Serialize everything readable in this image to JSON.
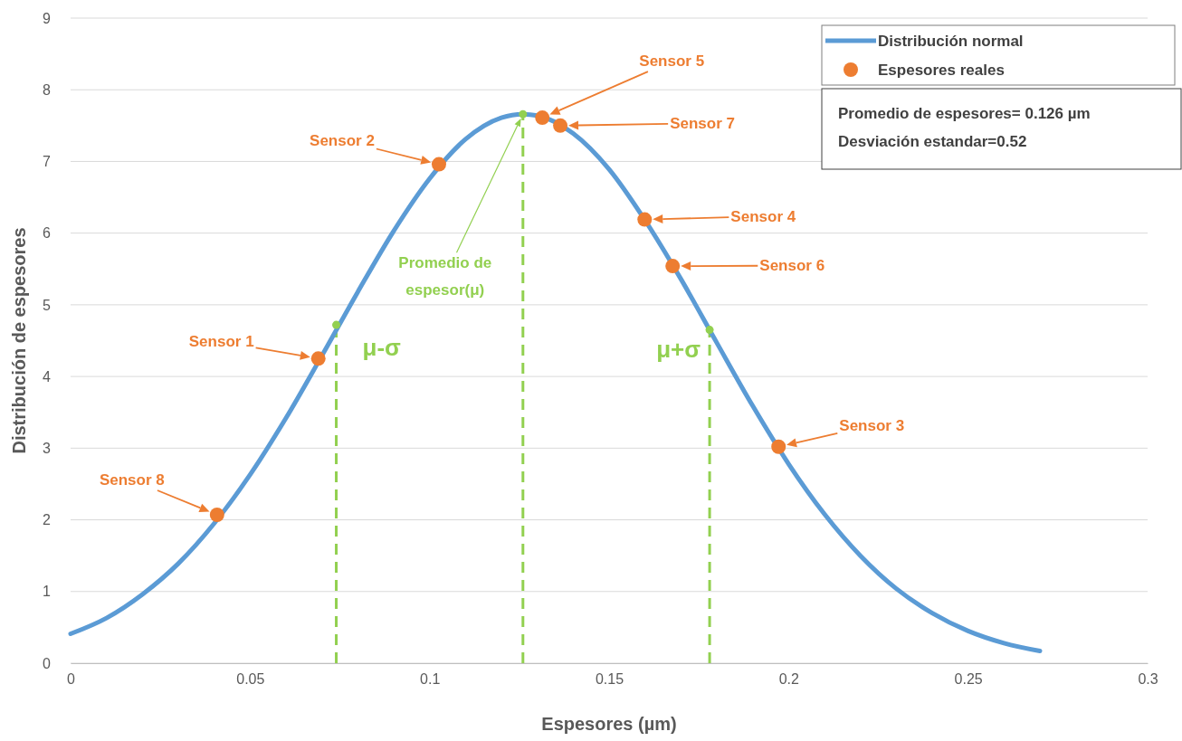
{
  "chart_data": {
    "type": "line",
    "xlabel": "Espesores (µm)",
    "ylabel": "Distribución de espesores",
    "xlim": [
      0,
      0.3
    ],
    "xticks": [
      0,
      0.05,
      0.1,
      0.15,
      0.2,
      0.25,
      0.3
    ],
    "ylim": [
      0,
      9
    ],
    "yticks": [
      0,
      1,
      2,
      3,
      4,
      5,
      6,
      7,
      8,
      9
    ],
    "grid": "y",
    "legend": "top right",
    "series": [
      {
        "name": "Distribución normal",
        "type": "line",
        "color": "#5b9bd5",
        "marker": "none",
        "x": [
          0,
          0.01,
          0.02,
          0.03,
          0.04,
          0.05,
          0.06,
          0.07,
          0.08,
          0.09,
          0.1,
          0.11,
          0.12,
          0.126,
          0.13,
          0.14,
          0.15,
          0.16,
          0.17,
          0.18,
          0.19,
          0.2,
          0.21,
          0.22,
          0.23,
          0.24,
          0.25,
          0.26,
          0.27
        ],
        "values": [
          0.41,
          0.63,
          0.96,
          1.39,
          1.95,
          2.63,
          3.42,
          4.29,
          5.18,
          6.03,
          6.76,
          7.31,
          7.61,
          7.66,
          7.64,
          7.39,
          6.89,
          6.18,
          5.36,
          4.47,
          3.59,
          2.78,
          2.08,
          1.5,
          1.04,
          0.7,
          0.45,
          0.28,
          0.17
        ]
      },
      {
        "name": "Espesores reales",
        "type": "scatter",
        "color": "#ed7d31",
        "marker": "circle",
        "x": [
          0.069,
          0.1026,
          0.1972,
          0.1599,
          0.1314,
          0.1677,
          0.1364,
          0.0408
        ],
        "values": [
          4.25,
          6.96,
          3.02,
          6.19,
          7.61,
          5.54,
          7.5,
          2.07
        ]
      },
      {
        "type": "line",
        "color": "#92d050",
        "line_style": "dashed",
        "marker": "none",
        "x": [
          0.074,
          0.074
        ],
        "values": [
          0,
          4.72
        ]
      },
      {
        "type": "line",
        "color": "#92d050",
        "line_style": "dashed",
        "marker": "none",
        "x": [
          0.126,
          0.126
        ],
        "values": [
          0,
          7.66
        ]
      },
      {
        "type": "line",
        "color": "#92d050",
        "line_style": "dashed",
        "marker": "none",
        "x": [
          0.178,
          0.178
        ],
        "values": [
          0,
          4.65
        ]
      },
      {
        "type": "scatter",
        "color": "#92d050",
        "marker": "circle",
        "x": [
          0.074,
          0.126,
          0.178
        ],
        "values": [
          4.72,
          7.66,
          4.65
        ]
      }
    ],
    "annotations": [
      "Sensor 1",
      "Sensor 2",
      "Sensor 3",
      "Sensor 4",
      "Sensor 5",
      "Sensor 6",
      "Sensor 7",
      "Sensor 8",
      "Promedio de espesor(μ)",
      "μ-σ",
      "μ+σ",
      "Promedio de espesores= 0.126 µm",
      "Desviación estandar=0.52"
    ]
  }
}
